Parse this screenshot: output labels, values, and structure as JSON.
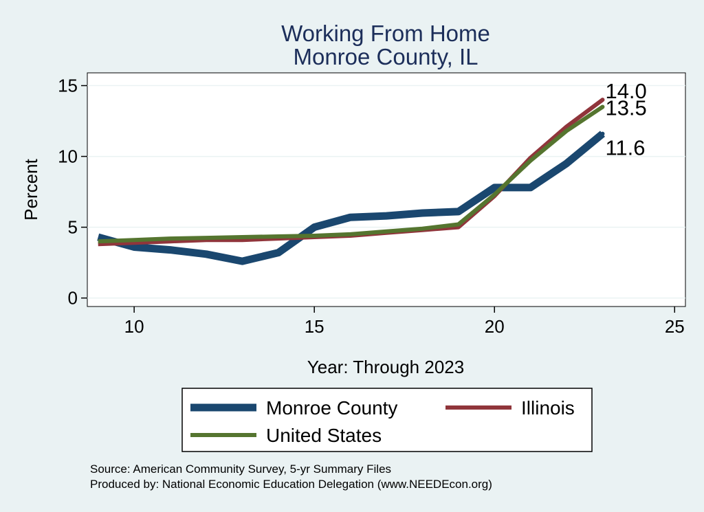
{
  "chart_data": {
    "type": "line",
    "title": [
      "Working From Home",
      "Monroe County, IL"
    ],
    "xlabel": "Year: Through 2023",
    "ylabel": "Percent",
    "xlim": [
      8.7,
      25.3
    ],
    "ylim": [
      -0.6,
      15.9
    ],
    "xticks": [
      10,
      15,
      20,
      25
    ],
    "yticks": [
      0,
      5,
      10,
      15
    ],
    "grid": "horizontal",
    "legend_position": "bottom",
    "series": [
      {
        "name": "Monroe County",
        "color": "#1a476f",
        "stroke": 11,
        "x": [
          9,
          10,
          11,
          12,
          13,
          14,
          15,
          16,
          17,
          18,
          19,
          20,
          21,
          22,
          23
        ],
        "values": [
          4.3,
          3.6,
          3.4,
          3.1,
          2.6,
          3.2,
          5.0,
          5.7,
          5.8,
          6.0,
          6.1,
          7.8,
          7.8,
          9.5,
          11.6
        ],
        "end_label": "11.6"
      },
      {
        "name": "Illinois",
        "color": "#90353b",
        "stroke": 6,
        "x": [
          9,
          10,
          11,
          12,
          13,
          14,
          15,
          16,
          17,
          18,
          19,
          20,
          21,
          22,
          23
        ],
        "values": [
          3.8,
          3.9,
          4.0,
          4.1,
          4.1,
          4.2,
          4.3,
          4.4,
          4.6,
          4.8,
          5.0,
          7.2,
          9.9,
          12.1,
          14.0
        ],
        "end_label": "14.0"
      },
      {
        "name": "United States",
        "color": "#55752f",
        "stroke": 6,
        "x": [
          9,
          10,
          11,
          12,
          13,
          14,
          15,
          16,
          17,
          18,
          19,
          20,
          21,
          22,
          23
        ],
        "values": [
          4.0,
          4.1,
          4.2,
          4.25,
          4.3,
          4.35,
          4.4,
          4.5,
          4.7,
          4.9,
          5.2,
          7.3,
          9.7,
          11.8,
          13.5
        ],
        "end_label": "13.5"
      }
    ],
    "legend": [
      "Monroe County",
      "Illinois",
      "United States"
    ]
  },
  "notes": {
    "source": "Source: American Community Survey, 5-yr Summary Files",
    "produced": "Produced by: National Economic Education Delegation (www.NEEDEcon.org)"
  }
}
